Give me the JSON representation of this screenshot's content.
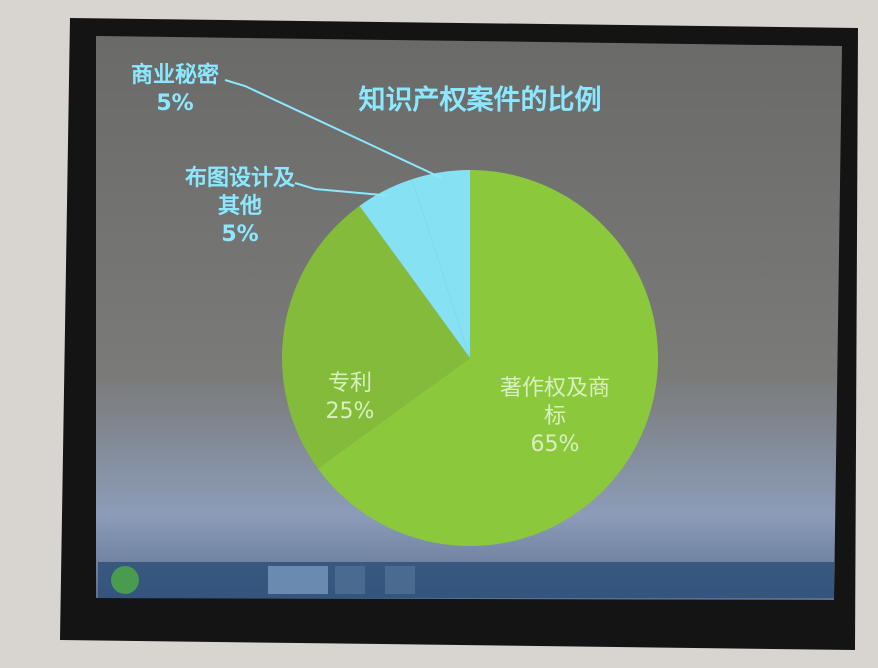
{
  "chart_data": {
    "type": "pie",
    "title": "知识产权案件的比例",
    "categories": [
      "著作权及商标",
      "专利",
      "布图设计及其他",
      "商业秘密"
    ],
    "values": [
      65,
      25,
      5,
      5
    ],
    "value_labels": [
      "65%",
      "25%",
      "5%",
      "5%"
    ],
    "colors": [
      "#8cc83c",
      "#84bb3a",
      "#86e2f2",
      "#86e2f2"
    ]
  }
}
